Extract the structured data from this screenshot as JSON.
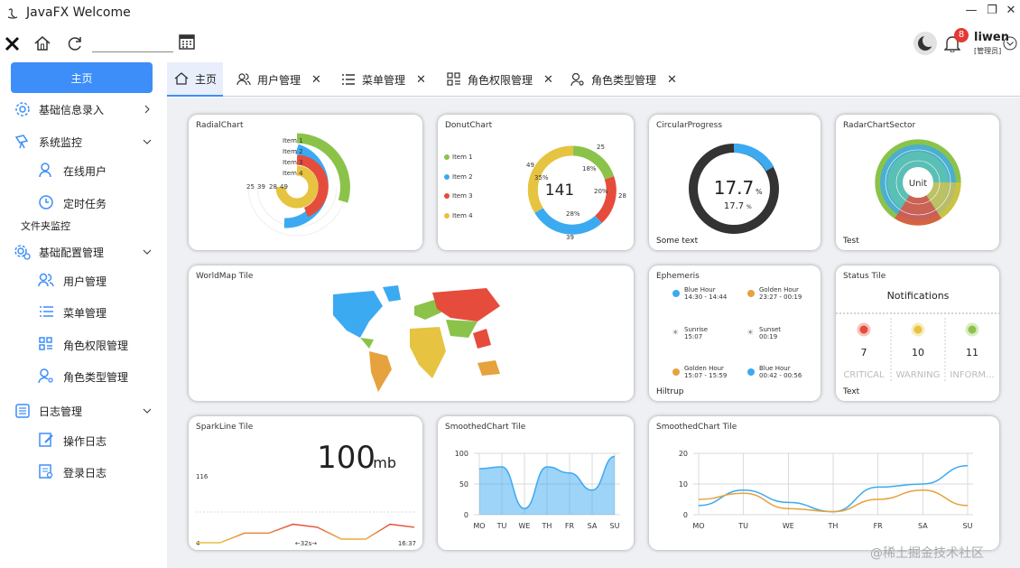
{
  "window": {
    "title": "JavaFX Welcome"
  },
  "toolbar": {
    "search_value": "",
    "user": {
      "name": "liwen",
      "role": "[管理员]",
      "notifications": "8"
    }
  },
  "sidebar": {
    "home": "主页",
    "basic_input": "基础信息录入",
    "monitor": "系统监控",
    "online_users": "在线用户",
    "scheduled": "定时任务",
    "folder_monitor": "文件夹监控",
    "basic_config": "基础配置管理",
    "user_mgmt": "用户管理",
    "menu_mgmt": "菜单管理",
    "role_perm": "角色权限管理",
    "role_type": "角色类型管理",
    "log_mgmt": "日志管理",
    "op_log": "操作日志",
    "login_log": "登录日志"
  },
  "tabs": [
    {
      "label": "主页"
    },
    {
      "label": "用户管理"
    },
    {
      "label": "菜单管理"
    },
    {
      "label": "角色权限管理"
    },
    {
      "label": "角色类型管理"
    }
  ],
  "tiles": {
    "radial": {
      "title": "RadialChart",
      "items": [
        "Item 1",
        "Item 2",
        "Item 3",
        "Item 4"
      ],
      "values": [
        "25",
        "39",
        "28",
        "49"
      ],
      "colors": [
        "#8bc34a",
        "#3baaf1",
        "#e64c3c",
        "#e6c340"
      ]
    },
    "donut": {
      "title": "DonutChart",
      "items": [
        "Item 1",
        "Item 2",
        "Item 3",
        "Item 4"
      ],
      "center": "141",
      "labels": [
        "25",
        "28",
        "39",
        "49"
      ],
      "pcts": [
        "18%",
        "20%",
        "28%",
        "35%"
      ]
    },
    "circular": {
      "title": "CircularProgress",
      "value": "17.7",
      "unit": "%",
      "sub": "17.7",
      "subunit": "%",
      "footer": "Some text"
    },
    "radar": {
      "title": "RadarChartSector",
      "center": "Unit",
      "footer": "Test"
    },
    "worldmap": {
      "title": "WorldMap Tile"
    },
    "ephemeris": {
      "title": "Ephemeris",
      "footer": "Hiltrup",
      "entries": [
        {
          "name": "Blue Hour",
          "time": "14:30 - 14:44"
        },
        {
          "name": "Golden Hour",
          "time": "23:27 - 00:19"
        },
        {
          "name": "Sunrise",
          "time": "15:07"
        },
        {
          "name": "Sunset",
          "time": "00:19"
        },
        {
          "name": "Golden Hour",
          "time": "15:07 - 15:59"
        },
        {
          "name": "Blue Hour",
          "time": "00:42 - 00:56"
        }
      ]
    },
    "status": {
      "title": "Status Tile",
      "header": "Notifications",
      "footer": "Text",
      "cols": [
        {
          "count": "7",
          "label": "CRITICAL"
        },
        {
          "count": "10",
          "label": "WARNING"
        },
        {
          "count": "11",
          "label": "INFORM..."
        }
      ]
    },
    "sparkline": {
      "title": "SparkLine Tile",
      "value": "100",
      "unit": "mb",
      "max": "116",
      "min": "4",
      "duration": "←32s→",
      "time": "16:37"
    },
    "smooth1": {
      "title": "SmoothedChart Tile"
    },
    "smooth2": {
      "title": "SmoothedChart Tile"
    }
  },
  "chart_data": [
    {
      "type": "area",
      "title": "SmoothedChart Tile",
      "categories": [
        "MO",
        "TU",
        "WE",
        "TH",
        "FR",
        "SA",
        "SU"
      ],
      "ylim": [
        0,
        100
      ],
      "yticks": [
        "100",
        "50",
        "0"
      ],
      "series": [
        {
          "values": [
            75,
            78,
            10,
            78,
            68,
            40,
            95
          ]
        }
      ]
    },
    {
      "type": "line",
      "title": "SmoothedChart Tile",
      "categories": [
        "MO",
        "TU",
        "WE",
        "TH",
        "FR",
        "SA",
        "SU"
      ],
      "ylim": [
        0,
        20
      ],
      "yticks": [
        "20",
        "10",
        "0"
      ],
      "series": [
        {
          "values": [
            3,
            8,
            4,
            1,
            9,
            10,
            16
          ],
          "color": "#3baaf1"
        },
        {
          "values": [
            5,
            7,
            2,
            1,
            5,
            8,
            3
          ],
          "color": "#e6a23c"
        }
      ]
    },
    {
      "type": "line",
      "title": "SparkLine Tile",
      "values": [
        4,
        4,
        20,
        20,
        35,
        30,
        10,
        10,
        35,
        30
      ],
      "ylim": [
        4,
        116
      ]
    }
  ],
  "watermark": "@稀土掘金技术社区"
}
